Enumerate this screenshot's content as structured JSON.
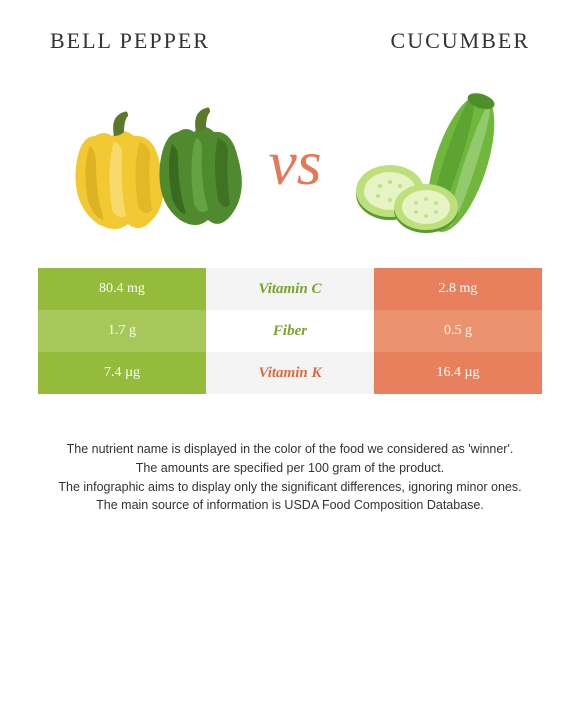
{
  "header": {
    "left_title": "Bell pepper",
    "right_title": "Cucumber"
  },
  "vs_label": "vs",
  "colors": {
    "left_main": "#94bb3c",
    "left_alt": "#a6c759",
    "mid_main": "#f4f4f4",
    "mid_alt": "#ffffff",
    "right_main": "#e8805d",
    "right_alt": "#eb926f",
    "mid_text_left_winner": "#7aa22e",
    "mid_text_right_winner": "#d96b45"
  },
  "rows": [
    {
      "left": "80.4 mg",
      "nutrient": "Vitamin C",
      "right": "2.8 mg",
      "winner": "left"
    },
    {
      "left": "1.7 g",
      "nutrient": "Fiber",
      "right": "0.5 g",
      "winner": "left"
    },
    {
      "left": "7.4 µg",
      "nutrient": "Vitamin K",
      "right": "16.4 µg",
      "winner": "right"
    }
  ],
  "footer": {
    "l1": "The nutrient name is displayed in the color of the food we considered as 'winner'.",
    "l2": "The amounts are specified per 100 gram of the product.",
    "l3": "The infographic aims to display only the significant differences, ignoring minor ones.",
    "l4": "The main source of information is USDA Food Composition Database."
  },
  "illustration_colors": {
    "pepper_yellow_body": "#f3c933",
    "pepper_yellow_highlight": "#f9de7a",
    "pepper_yellow_shadow": "#d3a81c",
    "pepper_green_body": "#4f8a2f",
    "pepper_green_highlight": "#6fae4a",
    "pepper_green_shadow": "#35621d",
    "pepper_stem": "#5a7a2a",
    "cucumber_body": "#6fb83d",
    "cucumber_dark": "#4e8f28",
    "cucumber_slice_outer": "#bde07a",
    "cucumber_slice_inner": "#e6f3c4",
    "cucumber_slice_rim": "#5a9a33"
  }
}
